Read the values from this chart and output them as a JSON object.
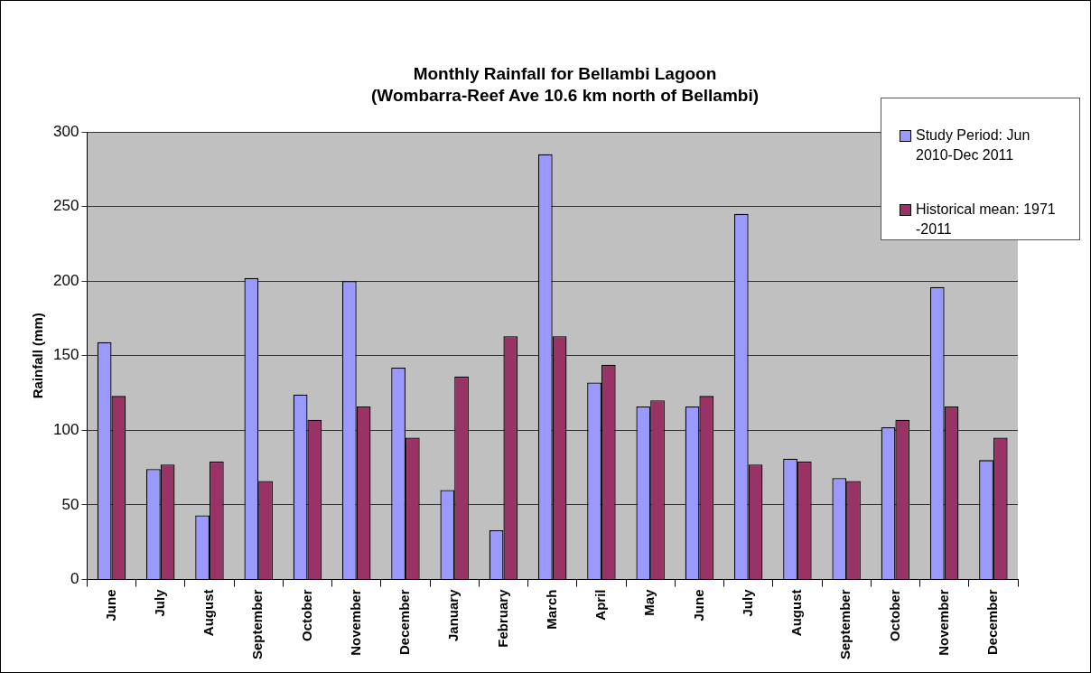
{
  "chart_data": {
    "type": "bar",
    "title": "Monthly Rainfall for Bellambi Lagoon\n(Wombarra-Reef Ave 10.6 km north of Bellambi)",
    "ylabel": "Rainfall (mm)",
    "categories": [
      "June",
      "July",
      "August",
      "September",
      "October",
      "November",
      "December",
      "January",
      "February",
      "March",
      "April",
      "May",
      "June",
      "July",
      "August",
      "September",
      "October",
      "November",
      "December"
    ],
    "series": [
      {
        "name": "Study Period: Jun 2010-Dec 2011",
        "color": "#9999ff",
        "values": [
          159,
          74,
          43,
          202,
          124,
          200,
          142,
          60,
          33,
          285,
          132,
          116,
          116,
          245,
          81,
          68,
          102,
          196,
          80
        ]
      },
      {
        "name": "Historical mean: 1971 -2011",
        "color": "#993366",
        "values": [
          123,
          77,
          79,
          66,
          107,
          116,
          95,
          136,
          163,
          163,
          144,
          120,
          123,
          77,
          79,
          66,
          107,
          116,
          95
        ]
      }
    ],
    "ylim": [
      0,
      300
    ],
    "yticks": [
      0,
      50,
      100,
      150,
      200,
      250,
      300
    ],
    "grid": "y",
    "legend": "top right"
  }
}
